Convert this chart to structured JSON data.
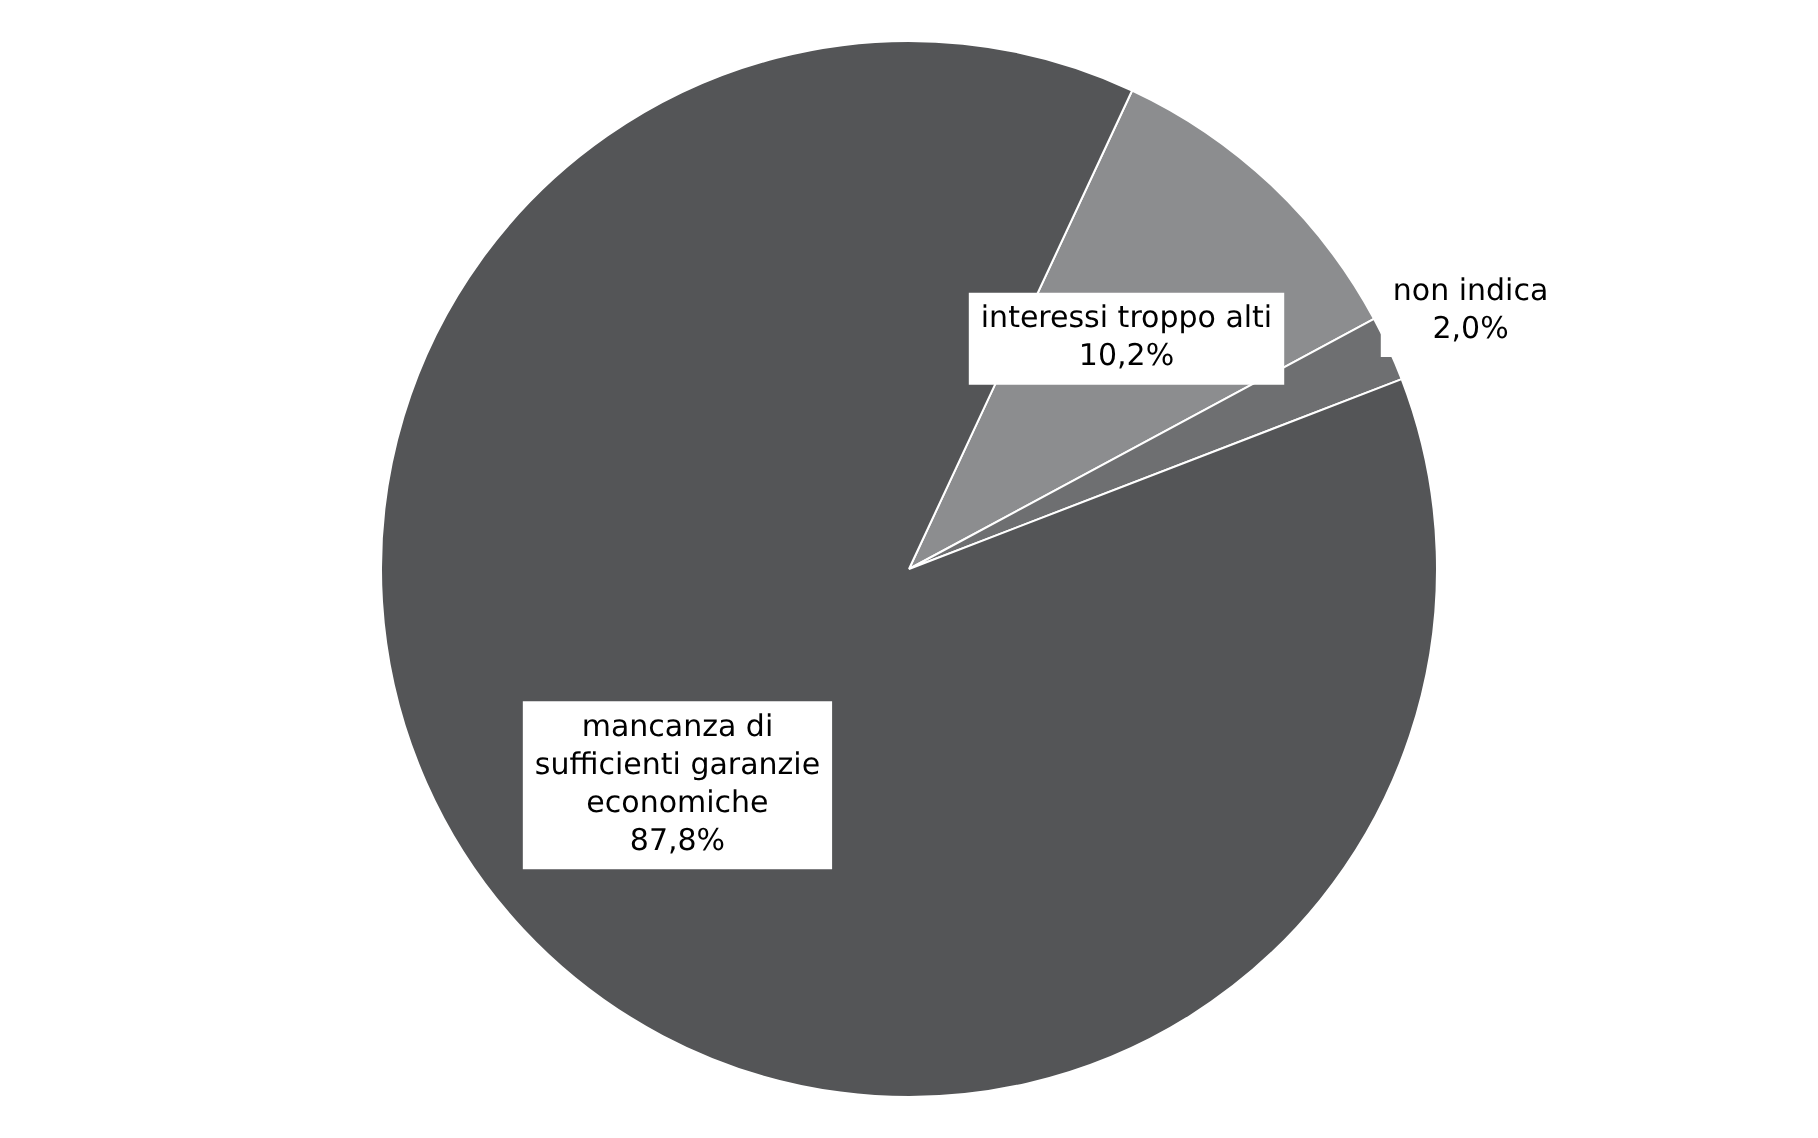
{
  "chart_data": {
    "type": "pie",
    "categories": [
      "interessi troppo alti",
      "non indica",
      "mancanza di sufficienti garanzie economiche"
    ],
    "values": [
      10.2,
      2.0,
      87.8
    ],
    "value_labels": [
      "10,2%",
      "2,0%",
      "87,8%"
    ],
    "colors": [
      "#8c8d8f",
      "#6e6f71",
      "#545557"
    ],
    "legend": false
  }
}
